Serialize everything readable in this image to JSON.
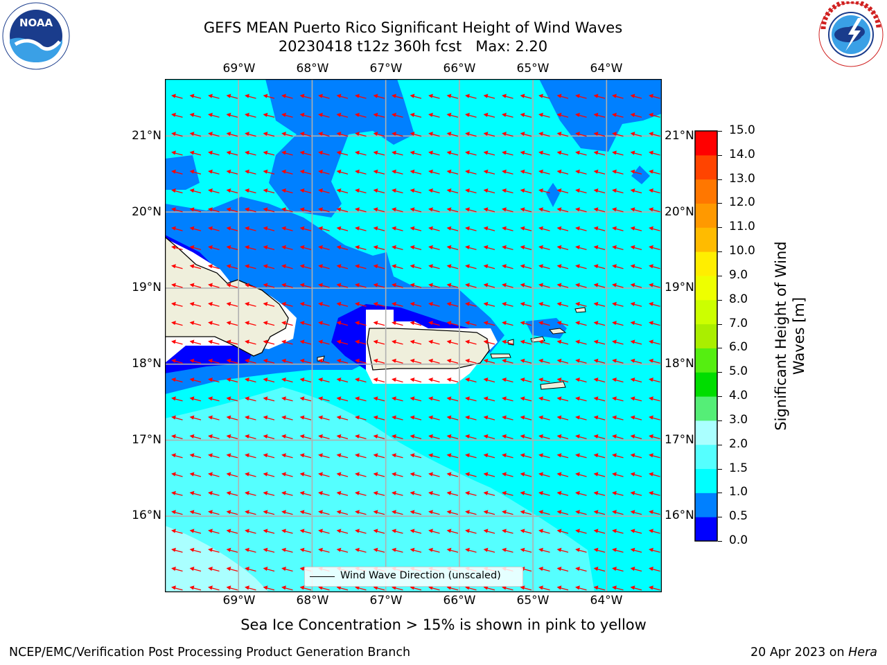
{
  "title": {
    "line1": "GEFS MEAN Puerto Rico Significant Height of Wind Waves",
    "line2": "20230418 t12z 360h fcst   Max: 2.20"
  },
  "logos": {
    "left": {
      "name": "noaa-logo",
      "text": "NOAA",
      "ring_text": "NATIONAL OCEANIC AND ATMOSPHERIC ADMINISTRATION · U.S. DEPARTMENT OF COMMERCE"
    },
    "right": {
      "name": "nws-logo",
      "ring_text": "NATIONAL WEATHER SERVICE"
    }
  },
  "map": {
    "lon_labels": [
      "69°W",
      "68°W",
      "67°W",
      "66°W",
      "65°W",
      "64°W"
    ],
    "lat_labels": [
      "21°N",
      "20°N",
      "19°N",
      "18°N",
      "17°N",
      "16°N"
    ],
    "lon_range": [
      -70.0,
      -63.25
    ],
    "lat_range": [
      15.0,
      21.75
    ],
    "arrow_color": "#ff0000",
    "land_color": "#efefdc",
    "legend_label": "Wind Wave Direction (unscaled)"
  },
  "colorbar": {
    "label": "Significant Height of Wind Waves [m]",
    "ticks": [
      "0.0",
      "0.5",
      "1.0",
      "1.5",
      "2.0",
      "3.0",
      "4.0",
      "5.0",
      "6.0",
      "7.0",
      "8.0",
      "9.0",
      "10.0",
      "11.0",
      "12.0",
      "13.0",
      "14.0",
      "15.0"
    ],
    "colors": [
      "#0000ff",
      "#0080ff",
      "#00ffff",
      "#55ffff",
      "#aaffff",
      "#55ee77",
      "#00dd00",
      "#55ee11",
      "#aaee00",
      "#ccff00",
      "#eeff00",
      "#ffee00",
      "#ffbb00",
      "#ff9900",
      "#ff7700",
      "#ff4400",
      "#ff0000"
    ]
  },
  "caption": "Sea Ice Concentration > 15% is shown in pink to yellow",
  "footer": {
    "left": "NCEP/EMC/Verification Post Processing Product Generation Branch",
    "right_date": "20 Apr 2023 on ",
    "right_host": "Hera"
  }
}
